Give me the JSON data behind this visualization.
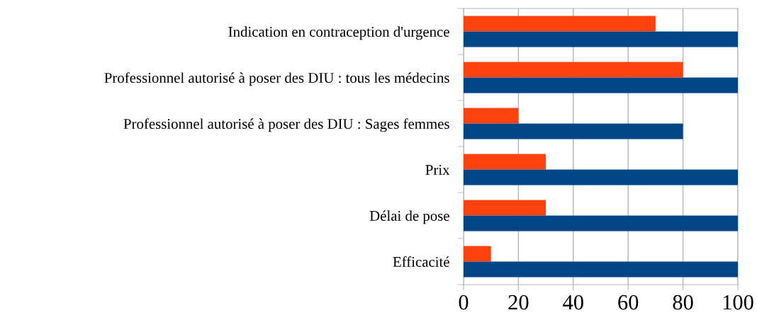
{
  "chart_data": {
    "type": "bar",
    "orientation": "horizontal",
    "categories": [
      "Indication en contraception d'urgence",
      "Professionnel autorisé à poser des DIU : tous les médecins",
      "Professionnel autorisé à poser des DIU : Sages femmes",
      "Prix",
      "Délai de pose",
      "Efficacité"
    ],
    "series": [
      {
        "color": "#ff420e",
        "values": [
          70,
          80,
          20,
          30,
          30,
          10
        ]
      },
      {
        "color": "#004586",
        "values": [
          100,
          100,
          80,
          100,
          100,
          100
        ]
      }
    ],
    "xlim": [
      0,
      100
    ],
    "xticks": [
      0,
      20,
      40,
      60,
      80,
      100
    ],
    "grid": "x",
    "legend": false
  }
}
